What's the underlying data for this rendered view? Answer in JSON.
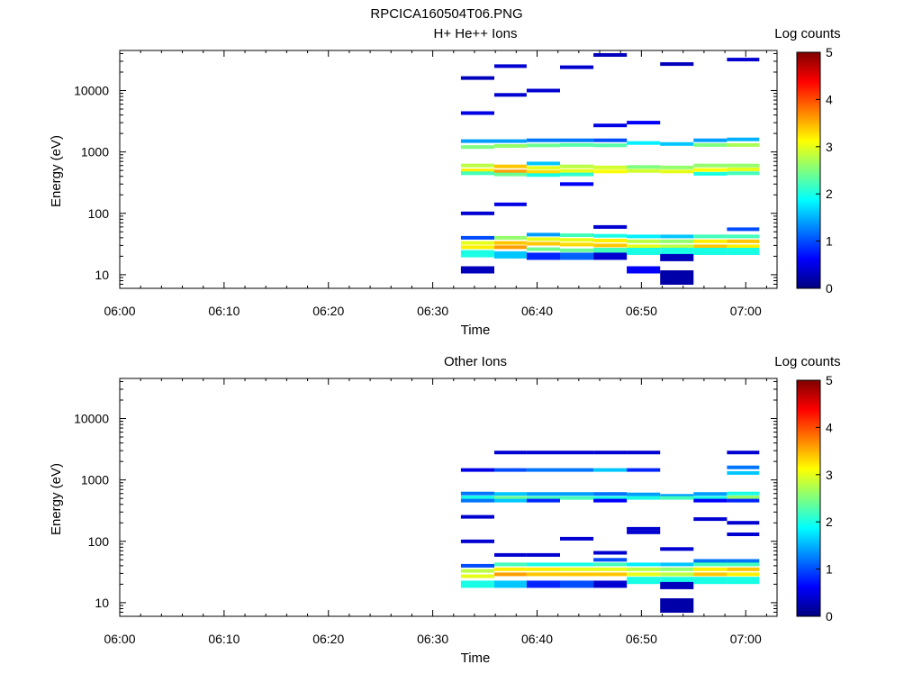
{
  "file_title": "RPCICA160504T06.PNG",
  "chart_data": [
    {
      "type": "heatmap",
      "title": "H+ He++ Ions",
      "xlabel": "Time",
      "ylabel": "Energy (eV)",
      "colorbar_label": "Log counts",
      "x_ticks": [
        "06:00",
        "06:10",
        "06:20",
        "06:30",
        "06:40",
        "06:50",
        "07:00"
      ],
      "x_range_minutes": [
        0,
        63
      ],
      "y_ticks": [
        "10",
        "100",
        "1000",
        "10000"
      ],
      "y_log": true,
      "y_range": [
        6,
        45000
      ],
      "colorbar_ticks": [
        "0",
        "1",
        "2",
        "3",
        "4",
        "5"
      ],
      "z_range": [
        0,
        5
      ],
      "colormap": [
        "#00007f",
        "#0000ff",
        "#007fff",
        "#00ffff",
        "#7fff7f",
        "#ffff00",
        "#ff7f00",
        "#ff0000",
        "#7f0000"
      ],
      "time_bins_minutes": [
        [
          32.7,
          35.9
        ],
        [
          35.9,
          39.0
        ],
        [
          39.0,
          42.2
        ],
        [
          42.2,
          45.4
        ],
        [
          45.4,
          48.6
        ],
        [
          48.6,
          51.8
        ],
        [
          51.8,
          55.0
        ],
        [
          55.0,
          58.2
        ],
        [
          58.2,
          61.3
        ]
      ],
      "cells": [
        {
          "bin": 0,
          "e": 16000,
          "v": 0.3
        },
        {
          "bin": 0,
          "e": 4300,
          "v": 0.5
        },
        {
          "bin": 0,
          "e": 1500,
          "v": 1.4
        },
        {
          "bin": 0,
          "e": 1200,
          "v": 2.5
        },
        {
          "bin": 0,
          "e": 600,
          "v": 2.8
        },
        {
          "bin": 0,
          "e": 500,
          "v": 3.2
        },
        {
          "bin": 0,
          "e": 450,
          "v": 2.2
        },
        {
          "bin": 0,
          "e": 100,
          "v": 0.4
        },
        {
          "bin": 0,
          "e": 40,
          "v": 1.0
        },
        {
          "bin": 0,
          "e": 33,
          "v": 3.0
        },
        {
          "bin": 0,
          "e": 28,
          "v": 3.2
        },
        {
          "bin": 0,
          "e": 22,
          "v": 2.0
        },
        {
          "bin": 0,
          "e": 12,
          "v": 0.3
        },
        {
          "bin": 1,
          "e": 25000,
          "v": 0.4
        },
        {
          "bin": 1,
          "e": 8500,
          "v": 0.4
        },
        {
          "bin": 1,
          "e": 1500,
          "v": 1.4
        },
        {
          "bin": 1,
          "e": 1250,
          "v": 2.6
        },
        {
          "bin": 1,
          "e": 580,
          "v": 3.4
        },
        {
          "bin": 1,
          "e": 480,
          "v": 3.6
        },
        {
          "bin": 1,
          "e": 430,
          "v": 2.4
        },
        {
          "bin": 1,
          "e": 140,
          "v": 0.5
        },
        {
          "bin": 1,
          "e": 40,
          "v": 2.6
        },
        {
          "bin": 1,
          "e": 33,
          "v": 3.4
        },
        {
          "bin": 1,
          "e": 28,
          "v": 3.6
        },
        {
          "bin": 1,
          "e": 21,
          "v": 1.6
        },
        {
          "bin": 2,
          "e": 10000,
          "v": 0.4
        },
        {
          "bin": 2,
          "e": 1550,
          "v": 1.2
        },
        {
          "bin": 2,
          "e": 1280,
          "v": 2.4
        },
        {
          "bin": 2,
          "e": 650,
          "v": 1.6
        },
        {
          "bin": 2,
          "e": 550,
          "v": 3.0
        },
        {
          "bin": 2,
          "e": 470,
          "v": 3.3
        },
        {
          "bin": 2,
          "e": 420,
          "v": 2.0
        },
        {
          "bin": 2,
          "e": 45,
          "v": 1.4
        },
        {
          "bin": 2,
          "e": 38,
          "v": 3.0
        },
        {
          "bin": 2,
          "e": 32,
          "v": 3.4
        },
        {
          "bin": 2,
          "e": 26,
          "v": 2.4
        },
        {
          "bin": 2,
          "e": 20,
          "v": 0.8
        },
        {
          "bin": 3,
          "e": 24000,
          "v": 0.4
        },
        {
          "bin": 3,
          "e": 1550,
          "v": 1.2
        },
        {
          "bin": 3,
          "e": 1300,
          "v": 2.3
        },
        {
          "bin": 3,
          "e": 580,
          "v": 2.8
        },
        {
          "bin": 3,
          "e": 490,
          "v": 3.0
        },
        {
          "bin": 3,
          "e": 430,
          "v": 2.1
        },
        {
          "bin": 3,
          "e": 300,
          "v": 0.6
        },
        {
          "bin": 3,
          "e": 44,
          "v": 2.2
        },
        {
          "bin": 3,
          "e": 37,
          "v": 3.0
        },
        {
          "bin": 3,
          "e": 31,
          "v": 3.3
        },
        {
          "bin": 3,
          "e": 25,
          "v": 2.4
        },
        {
          "bin": 3,
          "e": 20,
          "v": 1.1
        },
        {
          "bin": 4,
          "e": 38000,
          "v": 0.3
        },
        {
          "bin": 4,
          "e": 2700,
          "v": 0.5
        },
        {
          "bin": 4,
          "e": 1550,
          "v": 1.0
        },
        {
          "bin": 4,
          "e": 1280,
          "v": 2.3
        },
        {
          "bin": 4,
          "e": 560,
          "v": 2.9
        },
        {
          "bin": 4,
          "e": 480,
          "v": 3.1
        },
        {
          "bin": 4,
          "e": 60,
          "v": 0.4
        },
        {
          "bin": 4,
          "e": 43,
          "v": 2.0
        },
        {
          "bin": 4,
          "e": 36,
          "v": 3.2
        },
        {
          "bin": 4,
          "e": 30,
          "v": 3.4
        },
        {
          "bin": 4,
          "e": 24,
          "v": 2.2
        },
        {
          "bin": 4,
          "e": 20,
          "v": 0.4
        },
        {
          "bin": 5,
          "e": 3000,
          "v": 0.6
        },
        {
          "bin": 5,
          "e": 1400,
          "v": 1.8
        },
        {
          "bin": 5,
          "e": 570,
          "v": 2.5
        },
        {
          "bin": 5,
          "e": 490,
          "v": 2.9
        },
        {
          "bin": 5,
          "e": 42,
          "v": 1.8
        },
        {
          "bin": 5,
          "e": 35,
          "v": 2.8
        },
        {
          "bin": 5,
          "e": 29,
          "v": 3.0
        },
        {
          "bin": 5,
          "e": 24,
          "v": 2.0
        },
        {
          "bin": 5,
          "e": 12,
          "v": 0.6
        },
        {
          "bin": 6,
          "e": 27000,
          "v": 0.3
        },
        {
          "bin": 6,
          "e": 1350,
          "v": 1.6
        },
        {
          "bin": 6,
          "e": 560,
          "v": 2.6
        },
        {
          "bin": 6,
          "e": 480,
          "v": 3.0
        },
        {
          "bin": 6,
          "e": 42,
          "v": 1.6
        },
        {
          "bin": 6,
          "e": 35,
          "v": 2.6
        },
        {
          "bin": 6,
          "e": 29,
          "v": 2.8
        },
        {
          "bin": 6,
          "e": 24,
          "v": 2.0
        },
        {
          "bin": 6,
          "e": 19,
          "v": 0.3
        },
        {
          "bin": 6,
          "e": 9,
          "v": 0.2
        },
        {
          "bin": 7,
          "e": 1550,
          "v": 1.4
        },
        {
          "bin": 7,
          "e": 1300,
          "v": 2.5
        },
        {
          "bin": 7,
          "e": 600,
          "v": 2.6
        },
        {
          "bin": 7,
          "e": 510,
          "v": 3.1
        },
        {
          "bin": 7,
          "e": 440,
          "v": 2.0
        },
        {
          "bin": 7,
          "e": 42,
          "v": 2.2
        },
        {
          "bin": 7,
          "e": 35,
          "v": 3.2
        },
        {
          "bin": 7,
          "e": 29,
          "v": 3.4
        },
        {
          "bin": 7,
          "e": 24,
          "v": 2.0
        },
        {
          "bin": 8,
          "e": 32000,
          "v": 0.4
        },
        {
          "bin": 8,
          "e": 1600,
          "v": 1.5
        },
        {
          "bin": 8,
          "e": 1300,
          "v": 2.7
        },
        {
          "bin": 8,
          "e": 600,
          "v": 2.6
        },
        {
          "bin": 8,
          "e": 520,
          "v": 3.0
        },
        {
          "bin": 8,
          "e": 450,
          "v": 2.2
        },
        {
          "bin": 8,
          "e": 55,
          "v": 1.0
        },
        {
          "bin": 8,
          "e": 42,
          "v": 2.2
        },
        {
          "bin": 8,
          "e": 35,
          "v": 3.4
        },
        {
          "bin": 8,
          "e": 29,
          "v": 3.2
        },
        {
          "bin": 8,
          "e": 24,
          "v": 2.0
        }
      ]
    },
    {
      "type": "heatmap",
      "title": "Other Ions",
      "xlabel": "Time",
      "ylabel": "Energy (eV)",
      "colorbar_label": "Log counts",
      "x_ticks": [
        "06:00",
        "06:10",
        "06:20",
        "06:30",
        "06:40",
        "06:50",
        "07:00"
      ],
      "x_range_minutes": [
        0,
        63
      ],
      "y_ticks": [
        "10",
        "100",
        "1000",
        "10000"
      ],
      "y_log": true,
      "y_range": [
        6,
        45000
      ],
      "colorbar_ticks": [
        "0",
        "1",
        "2",
        "3",
        "4",
        "5"
      ],
      "z_range": [
        0,
        5
      ],
      "colormap": [
        "#00007f",
        "#0000ff",
        "#007fff",
        "#00ffff",
        "#7fff7f",
        "#ffff00",
        "#ff7f00",
        "#ff0000",
        "#7f0000"
      ],
      "time_bins_minutes": [
        [
          32.7,
          35.9
        ],
        [
          35.9,
          39.0
        ],
        [
          39.0,
          42.2
        ],
        [
          42.2,
          45.4
        ],
        [
          45.4,
          48.6
        ],
        [
          48.6,
          51.8
        ],
        [
          51.8,
          55.0
        ],
        [
          55.0,
          58.2
        ],
        [
          58.2,
          61.3
        ]
      ],
      "cells": [
        {
          "bin": 0,
          "e": 1450,
          "v": 0.5
        },
        {
          "bin": 0,
          "e": 600,
          "v": 1.2
        },
        {
          "bin": 0,
          "e": 520,
          "v": 2.0
        },
        {
          "bin": 0,
          "e": 460,
          "v": 1.2
        },
        {
          "bin": 0,
          "e": 250,
          "v": 0.4
        },
        {
          "bin": 0,
          "e": 100,
          "v": 0.4
        },
        {
          "bin": 0,
          "e": 40,
          "v": 1.0
        },
        {
          "bin": 0,
          "e": 33,
          "v": 2.8
        },
        {
          "bin": 0,
          "e": 27,
          "v": 3.0
        },
        {
          "bin": 0,
          "e": 20,
          "v": 2.0
        },
        {
          "bin": 1,
          "e": 2800,
          "v": 0.4
        },
        {
          "bin": 1,
          "e": 1450,
          "v": 1.0
        },
        {
          "bin": 1,
          "e": 590,
          "v": 1.6
        },
        {
          "bin": 1,
          "e": 510,
          "v": 2.4
        },
        {
          "bin": 1,
          "e": 460,
          "v": 1.6
        },
        {
          "bin": 1,
          "e": 60,
          "v": 0.4
        },
        {
          "bin": 1,
          "e": 42,
          "v": 2.2
        },
        {
          "bin": 1,
          "e": 35,
          "v": 3.2
        },
        {
          "bin": 1,
          "e": 29,
          "v": 3.6
        },
        {
          "bin": 1,
          "e": 20,
          "v": 1.6
        },
        {
          "bin": 2,
          "e": 2800,
          "v": 0.4
        },
        {
          "bin": 2,
          "e": 1450,
          "v": 1.2
        },
        {
          "bin": 2,
          "e": 590,
          "v": 1.4
        },
        {
          "bin": 2,
          "e": 510,
          "v": 2.2
        },
        {
          "bin": 2,
          "e": 460,
          "v": 0.8
        },
        {
          "bin": 2,
          "e": 60,
          "v": 0.4
        },
        {
          "bin": 2,
          "e": 42,
          "v": 2.0
        },
        {
          "bin": 2,
          "e": 35,
          "v": 3.2
        },
        {
          "bin": 2,
          "e": 29,
          "v": 3.4
        },
        {
          "bin": 2,
          "e": 20,
          "v": 0.8
        },
        {
          "bin": 3,
          "e": 2800,
          "v": 0.4
        },
        {
          "bin": 3,
          "e": 1450,
          "v": 1.2
        },
        {
          "bin": 3,
          "e": 590,
          "v": 1.4
        },
        {
          "bin": 3,
          "e": 510,
          "v": 2.2
        },
        {
          "bin": 3,
          "e": 110,
          "v": 0.4
        },
        {
          "bin": 3,
          "e": 42,
          "v": 2.0
        },
        {
          "bin": 3,
          "e": 35,
          "v": 3.0
        },
        {
          "bin": 3,
          "e": 29,
          "v": 3.4
        },
        {
          "bin": 3,
          "e": 20,
          "v": 1.0
        },
        {
          "bin": 4,
          "e": 2800,
          "v": 0.4
        },
        {
          "bin": 4,
          "e": 1450,
          "v": 1.6
        },
        {
          "bin": 4,
          "e": 590,
          "v": 1.2
        },
        {
          "bin": 4,
          "e": 510,
          "v": 2.0
        },
        {
          "bin": 4,
          "e": 460,
          "v": 0.6
        },
        {
          "bin": 4,
          "e": 65,
          "v": 0.4
        },
        {
          "bin": 4,
          "e": 50,
          "v": 1.0
        },
        {
          "bin": 4,
          "e": 42,
          "v": 2.2
        },
        {
          "bin": 4,
          "e": 35,
          "v": 3.0
        },
        {
          "bin": 4,
          "e": 29,
          "v": 3.4
        },
        {
          "bin": 4,
          "e": 20,
          "v": 0.4
        },
        {
          "bin": 5,
          "e": 2800,
          "v": 0.4
        },
        {
          "bin": 5,
          "e": 1450,
          "v": 0.8
        },
        {
          "bin": 5,
          "e": 580,
          "v": 1.4
        },
        {
          "bin": 5,
          "e": 510,
          "v": 2.0
        },
        {
          "bin": 5,
          "e": 160,
          "v": 0.4
        },
        {
          "bin": 5,
          "e": 140,
          "v": 0.4
        },
        {
          "bin": 5,
          "e": 42,
          "v": 1.8
        },
        {
          "bin": 5,
          "e": 35,
          "v": 2.8
        },
        {
          "bin": 5,
          "e": 29,
          "v": 3.0
        },
        {
          "bin": 5,
          "e": 23,
          "v": 2.0
        },
        {
          "bin": 6,
          "e": 550,
          "v": 1.4
        },
        {
          "bin": 6,
          "e": 510,
          "v": 2.2
        },
        {
          "bin": 6,
          "e": 75,
          "v": 0.4
        },
        {
          "bin": 6,
          "e": 42,
          "v": 1.6
        },
        {
          "bin": 6,
          "e": 35,
          "v": 2.6
        },
        {
          "bin": 6,
          "e": 29,
          "v": 2.8
        },
        {
          "bin": 6,
          "e": 23,
          "v": 2.0
        },
        {
          "bin": 6,
          "e": 19,
          "v": 0.3
        },
        {
          "bin": 6,
          "e": 9,
          "v": 0.2
        },
        {
          "bin": 7,
          "e": 590,
          "v": 1.4
        },
        {
          "bin": 7,
          "e": 510,
          "v": 2.0
        },
        {
          "bin": 7,
          "e": 460,
          "v": 0.6
        },
        {
          "bin": 7,
          "e": 230,
          "v": 0.4
        },
        {
          "bin": 7,
          "e": 48,
          "v": 1.2
        },
        {
          "bin": 7,
          "e": 42,
          "v": 2.2
        },
        {
          "bin": 7,
          "e": 35,
          "v": 3.2
        },
        {
          "bin": 7,
          "e": 29,
          "v": 3.4
        },
        {
          "bin": 7,
          "e": 23,
          "v": 2.0
        },
        {
          "bin": 8,
          "e": 2800,
          "v": 0.4
        },
        {
          "bin": 8,
          "e": 1600,
          "v": 1.2
        },
        {
          "bin": 8,
          "e": 1300,
          "v": 1.6
        },
        {
          "bin": 8,
          "e": 600,
          "v": 2.0
        },
        {
          "bin": 8,
          "e": 520,
          "v": 2.6
        },
        {
          "bin": 8,
          "e": 460,
          "v": 0.8
        },
        {
          "bin": 8,
          "e": 200,
          "v": 0.4
        },
        {
          "bin": 8,
          "e": 130,
          "v": 0.4
        },
        {
          "bin": 8,
          "e": 48,
          "v": 1.2
        },
        {
          "bin": 8,
          "e": 42,
          "v": 2.2
        },
        {
          "bin": 8,
          "e": 35,
          "v": 3.4
        },
        {
          "bin": 8,
          "e": 29,
          "v": 3.2
        },
        {
          "bin": 8,
          "e": 23,
          "v": 2.0
        }
      ]
    }
  ]
}
